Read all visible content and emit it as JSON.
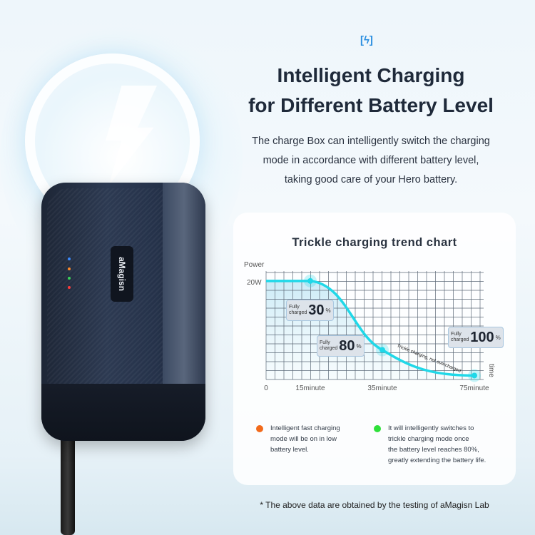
{
  "header": {
    "icon": "battery-charging-icon",
    "title_line1": "Intelligent Charging",
    "title_line2": "for Different Battery Level",
    "description": [
      "The charge Box can intelligently switch the charging",
      "mode in accordance with different battery level,",
      "taking good care of your  Hero battery."
    ]
  },
  "product": {
    "brand_logo": "aMagisn"
  },
  "chart_data": {
    "type": "line",
    "title": "Trickle charging trend chart",
    "ylabel": "Power",
    "xlabel": "time",
    "y_tick_labels": [
      "20W"
    ],
    "x_tick_labels": [
      "0",
      "15minute",
      "35minute",
      "75minute"
    ],
    "grid": true,
    "series": [
      {
        "x": [
          0,
          15,
          35,
          75
        ],
        "y": [
          20,
          20,
          6,
          0.8
        ],
        "color": "#20d8e8"
      }
    ],
    "annotations": [
      {
        "x": 15,
        "small": "Fully\ncharged",
        "big": "30",
        "unit": "%"
      },
      {
        "x": 35,
        "small": "Fully\ncharged",
        "big": "80",
        "unit": "%"
      },
      {
        "x": 75,
        "small": "Fully\ncharged",
        "big": "100",
        "unit": "%"
      }
    ],
    "curve_note": "Trickle charging, not overcharged"
  },
  "legend": [
    {
      "color": "#f26a1b",
      "lines": [
        "Intelligent fast charging",
        "mode will be on in low",
        "battery level."
      ]
    },
    {
      "color": "#2fe03a",
      "lines": [
        "It will intelligently switches to",
        "trickle charging mode once",
        "the battery level reaches 80%,",
        "greatly extending the battery life."
      ]
    }
  ],
  "footnote": "* The above data are obtained by the testing of aMagisn Lab"
}
